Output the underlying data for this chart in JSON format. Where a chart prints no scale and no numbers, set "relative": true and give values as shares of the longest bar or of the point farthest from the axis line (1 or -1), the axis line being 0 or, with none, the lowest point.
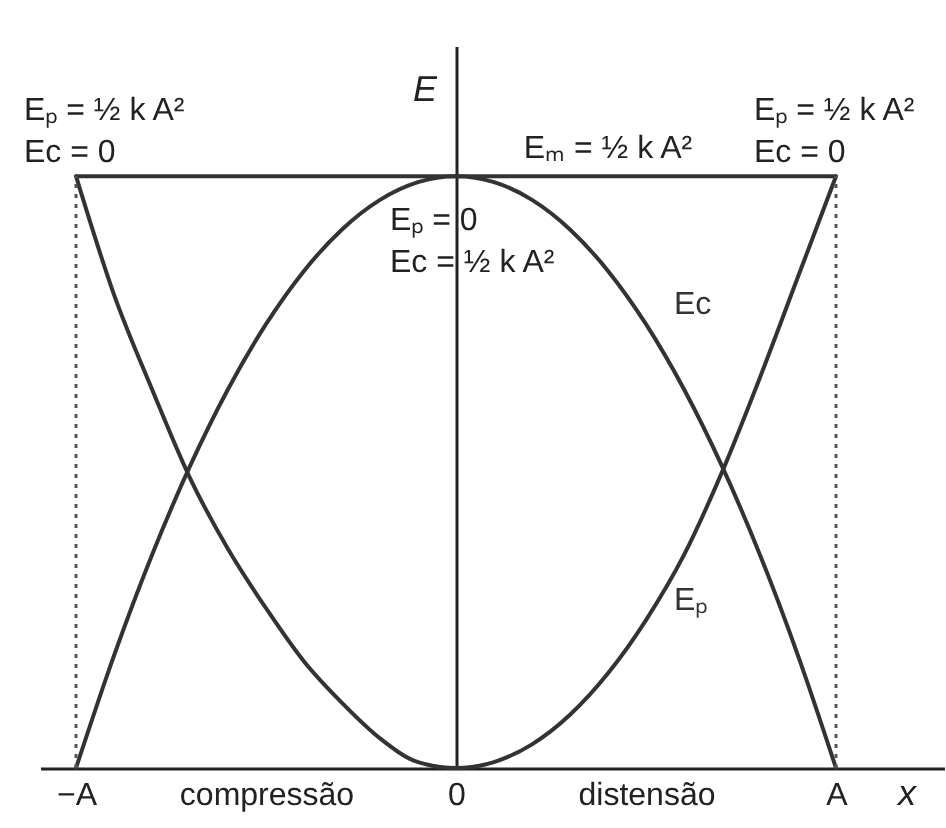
{
  "chart_data": {
    "type": "line",
    "relative": true,
    "xlabel": "x",
    "ylabel": "E",
    "tick_labels": "x",
    "categories": [
      "−A",
      null,
      null,
      null,
      null,
      "compressão",
      null,
      null,
      null,
      null,
      "0",
      null,
      null,
      null,
      null,
      "distensão",
      null,
      null,
      null,
      null,
      "A"
    ],
    "series": [
      {
        "name": "Eₚ",
        "color": "#333333",
        "values": [
          1,
          0.8,
          0.64,
          0.49,
          0.37,
          0.27,
          0.18,
          0.11,
          0.05,
          0.01,
          0,
          0.01,
          0.04,
          0.09,
          0.16,
          0.25,
          0.36,
          0.5,
          0.66,
          0.83,
          1
        ]
      },
      {
        "name": "Ec",
        "color": "#333333",
        "values": [
          0,
          0.19,
          0.36,
          0.51,
          0.64,
          0.75,
          0.84,
          0.91,
          0.96,
          0.99,
          1,
          0.99,
          0.96,
          0.91,
          0.84,
          0.75,
          0.64,
          0.51,
          0.36,
          0.19,
          0
        ]
      }
    ],
    "ref_lines": [
      {
        "axis": "y",
        "value": 1,
        "label": "Eₘ = ½ k A²",
        "line_style": "solid",
        "color": "#333333"
      },
      {
        "axis": "x",
        "value": "−A",
        "line_style": "dotted",
        "color": "#555555"
      },
      {
        "axis": "x",
        "value": "A",
        "line_style": "dotted",
        "color": "#555555"
      }
    ],
    "annotations": [
      {
        "text": "Eₚ = ½ k A²\nEc = 0",
        "x": "−A",
        "y": 1
      },
      {
        "text": "Eₚ = ½ k A²\nEc = 0",
        "x": "A",
        "y": 1
      },
      {
        "text": "Eₚ = 0\nEc = ½ k A²",
        "x": "0",
        "y": 1
      }
    ]
  }
}
